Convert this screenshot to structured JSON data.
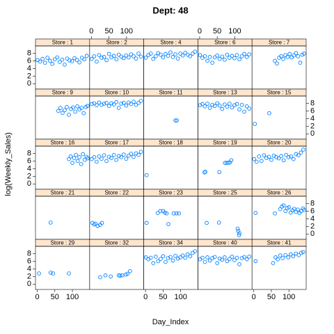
{
  "chart_data": {
    "type": "scatter",
    "title": "Dept: 48",
    "xlabel": "Day_Index",
    "ylabel": "log(Weekly_Sales)",
    "color": "#0080ff",
    "strip_color": "#ffe5cc",
    "xlim": [
      -5,
      149
    ],
    "ylim": [
      -1.4,
      9.9
    ],
    "xticks": [
      0,
      50,
      100
    ],
    "yticks": [
      0,
      2,
      4,
      6,
      8
    ],
    "panels": [
      {
        "name": "Store : 1",
        "x": [
          1,
          8,
          15,
          22,
          29,
          36,
          43,
          50,
          57,
          64,
          71,
          78,
          85,
          92,
          99,
          106,
          113,
          120,
          127,
          134,
          141
        ],
        "y": [
          6.2,
          5.8,
          6.5,
          5.5,
          6.8,
          6.0,
          5.2,
          6.4,
          6.9,
          5.7,
          6.3,
          5.0,
          6.6,
          6.1,
          5.9,
          6.7,
          6.2,
          5.6,
          6.8,
          6.4,
          7.3
        ]
      },
      {
        "name": "Store : 2",
        "x": [
          1,
          8,
          15,
          22,
          29,
          36,
          43,
          50,
          57,
          64,
          71,
          78,
          85,
          92,
          99,
          106,
          113,
          120,
          127,
          134,
          141
        ],
        "y": [
          6.5,
          7.2,
          5.8,
          7.5,
          6.8,
          7.0,
          6.2,
          7.8,
          6.9,
          7.3,
          6.4,
          7.6,
          7.1,
          6.7,
          7.4,
          6.9,
          7.7,
          7.2,
          6.6,
          7.9,
          7.1
        ]
      },
      {
        "name": "Store : 4",
        "x": [
          1,
          8,
          15,
          22,
          29,
          36,
          43,
          50,
          57,
          64,
          71,
          78,
          85,
          92,
          99,
          106,
          113,
          120,
          127,
          134,
          141
        ],
        "y": [
          6.8,
          7.5,
          7.9,
          6.5,
          7.2,
          8.0,
          7.6,
          6.9,
          7.8,
          7.3,
          8.2,
          7.0,
          7.7,
          6.6,
          7.9,
          7.4,
          8.1,
          7.6,
          7.2,
          7.9,
          8.4
        ]
      },
      {
        "name": "Store : 6",
        "x": [
          1,
          8,
          15,
          22,
          29,
          36,
          43,
          50,
          57,
          64,
          71,
          78,
          85,
          92,
          99,
          106,
          113,
          120,
          127,
          134,
          141
        ],
        "y": [
          7.5,
          6.8,
          7.2,
          6.0,
          7.0,
          5.5,
          6.9,
          7.4,
          6.5,
          7.1,
          6.3,
          7.6,
          6.8,
          7.3,
          6.7,
          7.5,
          6.4,
          7.2,
          7.8,
          7.0,
          7.7
        ]
      },
      {
        "name": "Store : 7",
        "x": [
          60,
          66,
          72,
          78,
          84,
          90,
          96,
          102,
          108,
          114,
          120,
          126,
          132,
          138,
          143
        ],
        "y": [
          6.0,
          5.3,
          6.8,
          7.2,
          6.5,
          7.5,
          7.0,
          7.8,
          6.9,
          7.4,
          8.0,
          7.2,
          5.5,
          7.6,
          7.9
        ]
      },
      {
        "name": "Store : 9",
        "x": [
          60,
          66,
          72,
          78,
          84,
          90,
          96,
          102,
          108,
          114,
          120,
          126,
          132,
          138,
          143
        ],
        "y": [
          6.0,
          6.8,
          5.5,
          6.2,
          7.0,
          5.0,
          6.5,
          6.9,
          5.8,
          7.2,
          6.4,
          6.8,
          5.4,
          7.0,
          7.3
        ]
      },
      {
        "name": "Store : 10",
        "x": [
          1,
          8,
          15,
          22,
          29,
          36,
          43,
          50,
          57,
          64,
          71,
          78,
          85,
          92,
          99,
          106,
          113,
          120,
          127,
          134,
          141
        ],
        "y": [
          7.8,
          8.0,
          7.5,
          8.2,
          7.6,
          7.9,
          8.1,
          7.3,
          8.0,
          7.7,
          8.3,
          6.8,
          7.9,
          8.1,
          7.4,
          8.2,
          7.8,
          8.4,
          7.6,
          8.1,
          8.6
        ]
      },
      {
        "name": "Store : 11",
        "x": [
          85,
          89
        ],
        "y": [
          3.5,
          3.5
        ]
      },
      {
        "name": "Store : 13",
        "x": [
          1,
          8,
          15,
          22,
          29,
          36,
          43,
          50,
          57,
          64,
          71,
          78,
          85,
          92,
          99,
          106,
          113,
          120,
          127,
          134,
          141
        ],
        "y": [
          7.5,
          7.8,
          7.2,
          7.9,
          6.8,
          7.6,
          7.3,
          8.0,
          7.4,
          6.5,
          7.7,
          7.1,
          7.9,
          6.9,
          7.5,
          7.8,
          6.4,
          7.6,
          5.8,
          7.2,
          6.6
        ]
      },
      {
        "name": "Store : 15",
        "x": [
          3,
          44
        ],
        "y": [
          2.6,
          5.4
        ]
      },
      {
        "name": "Store : 16",
        "x": [
          90,
          95,
          100,
          105,
          110,
          115,
          120,
          125,
          130,
          135,
          140,
          143
        ],
        "y": [
          6.5,
          7.2,
          5.5,
          6.8,
          7.6,
          6.0,
          7.0,
          5.2,
          7.8,
          6.3,
          7.1,
          6.7
        ]
      },
      {
        "name": "Store : 17",
        "x": [
          1,
          8,
          15,
          22,
          29,
          36,
          43,
          50,
          57,
          64,
          71,
          78,
          85,
          92,
          99,
          106,
          113,
          120,
          127,
          134,
          141
        ],
        "y": [
          6.5,
          7.0,
          5.8,
          7.2,
          6.6,
          7.5,
          6.0,
          7.1,
          6.8,
          7.6,
          6.3,
          7.3,
          7.0,
          7.7,
          6.6,
          7.4,
          7.9,
          7.1,
          8.0,
          7.6,
          8.4
        ]
      },
      {
        "name": "Store : 18",
        "x": [
          3
        ],
        "y": [
          2.3
        ]
      },
      {
        "name": "Store : 19",
        "x": [
          14,
          16,
          56,
          72,
          77,
          82,
          86,
          90
        ],
        "y": [
          3.0,
          3.2,
          3.1,
          5.5,
          5.5,
          5.6,
          5.6,
          6.2
        ]
      },
      {
        "name": "Store : 20",
        "x": [
          1,
          8,
          15,
          22,
          29,
          36,
          43,
          50,
          57,
          64,
          71,
          78,
          85,
          92,
          99,
          106,
          113,
          120,
          127,
          134,
          141
        ],
        "y": [
          6.5,
          5.8,
          7.2,
          6.0,
          7.5,
          6.8,
          7.1,
          6.3,
          7.4,
          7.0,
          6.7,
          7.3,
          6.2,
          7.6,
          7.0,
          7.2,
          6.5,
          7.8,
          7.5,
          8.2,
          9.0
        ]
      },
      {
        "name": "Store : 21",
        "x": [
          38
        ],
        "y": [
          3.0
        ]
      },
      {
        "name": "Store : 22",
        "x": [
          3,
          8,
          12,
          18,
          25,
          30
        ],
        "y": [
          2.9,
          2.5,
          2.7,
          2.1,
          2.4,
          2.9
        ]
      },
      {
        "name": "Store : 23",
        "x": [
          3,
          35,
          42,
          50,
          55,
          60,
          65,
          80,
          88,
          95
        ],
        "y": [
          2.9,
          5.5,
          6.0,
          6.0,
          5.6,
          5.4,
          2.6,
          5.4,
          5.4,
          5.4
        ]
      },
      {
        "name": "Store : 25",
        "x": [
          20,
          55,
          108,
          110,
          112,
          113
        ],
        "y": [
          2.9,
          3.0,
          1.4,
          0.8,
          -0.3,
          0.2
        ]
      },
      {
        "name": "Store : 26",
        "x": [
          5,
          60,
          75,
          80,
          85,
          90,
          95,
          100,
          105,
          110,
          115,
          120,
          125,
          130,
          135,
          140,
          143
        ],
        "y": [
          5.5,
          5.4,
          6.5,
          7.2,
          7.5,
          6.0,
          6.8,
          7.0,
          5.6,
          6.2,
          6.6,
          5.8,
          6.4,
          5.5,
          6.0,
          6.7,
          6.3
        ]
      },
      {
        "name": "Store : 29",
        "x": [
          5,
          38,
          45,
          90
        ],
        "y": [
          2.8,
          3.0,
          2.8,
          2.8
        ]
      },
      {
        "name": "Store : 32",
        "x": [
          25,
          40,
          55,
          78,
          82,
          88,
          98,
          103,
          110
        ],
        "y": [
          1.8,
          2.3,
          2.0,
          2.3,
          2.2,
          2.3,
          2.5,
          2.7,
          3.4
        ]
      },
      {
        "name": "Store : 34",
        "x": [
          1,
          8,
          15,
          22,
          29,
          36,
          43,
          50,
          57,
          64,
          71,
          78,
          85,
          92,
          99,
          106,
          113,
          120,
          127,
          134,
          141
        ],
        "y": [
          7.0,
          6.5,
          6.9,
          5.5,
          7.2,
          6.0,
          6.6,
          7.3,
          5.8,
          6.8,
          7.1,
          6.2,
          7.4,
          6.7,
          7.0,
          7.5,
          6.9,
          7.8,
          7.3,
          8.2,
          8.6
        ]
      },
      {
        "name": "Store : 40",
        "x": [
          1,
          8,
          15,
          22,
          29,
          36,
          43,
          50,
          57,
          64,
          71,
          78,
          85,
          92,
          99,
          106,
          113,
          120,
          127,
          134,
          141
        ],
        "y": [
          6.5,
          6.9,
          5.8,
          7.0,
          6.2,
          6.8,
          7.1,
          5.5,
          6.7,
          6.4,
          7.0,
          6.0,
          6.6,
          7.2,
          6.3,
          6.9,
          5.2,
          6.8,
          7.1,
          6.5,
          7.2
        ]
      },
      {
        "name": "Store : 41",
        "x": [
          5,
          55,
          62,
          68,
          75,
          82,
          90,
          98,
          105,
          112,
          120,
          128,
          135,
          141
        ],
        "y": [
          6.0,
          5.5,
          7.0,
          6.5,
          7.5,
          6.8,
          7.6,
          7.0,
          7.8,
          7.3,
          8.0,
          7.6,
          8.2,
          8.4
        ]
      }
    ]
  }
}
